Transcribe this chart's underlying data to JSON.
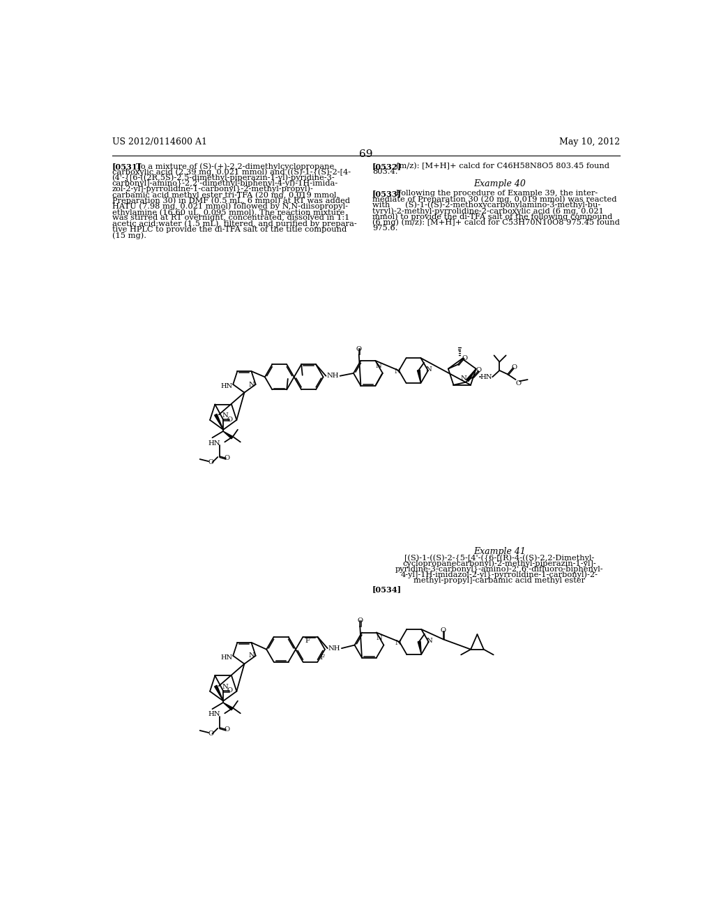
{
  "bg": "#ffffff",
  "header_left": "US 2012/0114600 A1",
  "header_right": "May 10, 2012",
  "page_number": "69",
  "fs_body": 8.2,
  "fs_header": 9.0,
  "fs_page": 11.0,
  "fs_heading": 9.0,
  "tag_0531": "[0531]",
  "lines_0531": [
    "To a mixture of (S)-(+)-2,2-dimethylcyclopropane",
    "carboxylic acid (2.39 mg, 0.021 mmol) and ((S)-1-{(S)-2-[4-",
    "(4'-{[6-((2R,5S)-2,5-dimethyl-piperazin-1-yl)-pyridine-3-",
    "carbonyl]-amino}-2,2'-dimethyl-biphenyl-4-yl)-1H-imida-",
    "zol-2-yl]-pyrrolidine-1-carbonyl}-2-methyl-propyl)-",
    "carbamic acid methyl ester tri-TFA (20 mg, 0.019 mmol,",
    "Preparation 30) in DMF (0.5 mL, 6 mmol) at RT was added",
    "HATU (7.98 mg, 0.021 mmol) followed by N,N-diisopropyl-",
    "ethylamine (16.60 uL, 0.095 mmol). The reaction mixture",
    "was stirred at RT overnight, concentrated, dissolved in 1:1",
    "acetic acid:water (1.5 mL), filtered, and purified by prepara-",
    "tive HPLC to provide the di-TFA salt of the title compound",
    "(15 mg)."
  ],
  "tag_0532": "[0532]",
  "lines_0532": [
    "(m/z): [M+H]+ calcd for C46H58N8O5 803.45 found",
    "803.4."
  ],
  "heading_ex40": "Example 40",
  "tag_0533": "[0533]",
  "lines_0533": [
    "Following the procedure of Example 39, the inter-",
    "mediate of Preparation 30 (20 mg, 0.019 mmol) was reacted",
    "with      (S)-1-((S)-2-methoxycarbonylamino-3-methyl-bu-",
    "tyryl)-2-methyl-pyrrolidine-2-carboxylic acid (6 mg, 0.021",
    "mmol) to provide the di-TFA salt of the following compound",
    "(6 mg) (m/z): [M+H]+ calcd for C53H70N10O8 975.45 found",
    "975.6."
  ],
  "heading_ex41": "Example 41",
  "lines_ex41name": [
    "[(S)-1-((S)-2-{5-[4'-({6-[(R)-4-((S)-2,2-Dimethyl-",
    "cyclopropanecarbonyl)-2-methyl-piperazin-1-yl]-",
    "pyridine-3-carbonyl}-amino)-2',6'-difluoro-biphenyl-",
    "4-yl]-1H-imidazol-2-yl}-pyrrolidine-1-carbonyl)-2-",
    "methyl-propyl]-carbamic acid methyl ester"
  ],
  "tag_0534": "[0534]"
}
